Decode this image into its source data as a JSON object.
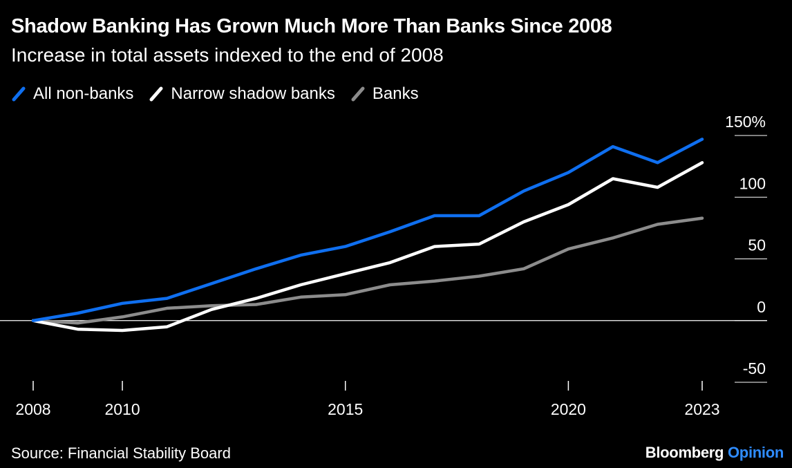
{
  "title": "Shadow Banking Has Grown Much More Than Banks Since 2008",
  "subtitle": "Increase in total assets indexed to the end of 2008",
  "source": "Source: Financial Stability Board",
  "brand": {
    "main": "Bloomberg",
    "accent": "Opinion"
  },
  "colors": {
    "background": "#000000",
    "all_non_banks": "#0f6ff0",
    "narrow_shadow_banks": "#ffffff",
    "banks": "#8c8c8c",
    "brand_accent": "#2f8cff"
  },
  "chart_data": {
    "type": "line",
    "title": "Shadow Banking Has Grown Much More Than Banks Since 2008",
    "subtitle": "Increase in total assets indexed to the end of 2008",
    "xlabel": "",
    "ylabel": "",
    "x": [
      2008,
      2009,
      2010,
      2011,
      2012,
      2013,
      2014,
      2015,
      2016,
      2017,
      2018,
      2019,
      2020,
      2021,
      2022,
      2023
    ],
    "ylim": [
      -50,
      150
    ],
    "xlim": [
      2008,
      2023
    ],
    "y_ticks": [
      150,
      100,
      50,
      0,
      -50
    ],
    "y_tick_labels": [
      "150%",
      "100",
      "50",
      "0",
      "-50"
    ],
    "x_ticks": [
      2008,
      2010,
      2015,
      2020,
      2023
    ],
    "x_tick_labels": [
      "2008",
      "2010",
      "2015",
      "2020",
      "2023"
    ],
    "grid": "horizontal right-side tick marks",
    "zero_line": true,
    "legend_position": "top-left",
    "series": [
      {
        "name": "All non-banks",
        "color": "#0f6ff0",
        "values": [
          0,
          6,
          14,
          18,
          30,
          42,
          53,
          60,
          72,
          85,
          85,
          105,
          120,
          141,
          128,
          147
        ]
      },
      {
        "name": "Narrow shadow banks",
        "color": "#ffffff",
        "values": [
          0,
          -7,
          -8,
          -5,
          9,
          18,
          29,
          38,
          47,
          60,
          62,
          80,
          94,
          115,
          108,
          128
        ]
      },
      {
        "name": "Banks",
        "color": "#8c8c8c",
        "values": [
          0,
          -2,
          3,
          10,
          12,
          13,
          19,
          21,
          29,
          32,
          36,
          42,
          58,
          67,
          78,
          83
        ]
      }
    ]
  }
}
